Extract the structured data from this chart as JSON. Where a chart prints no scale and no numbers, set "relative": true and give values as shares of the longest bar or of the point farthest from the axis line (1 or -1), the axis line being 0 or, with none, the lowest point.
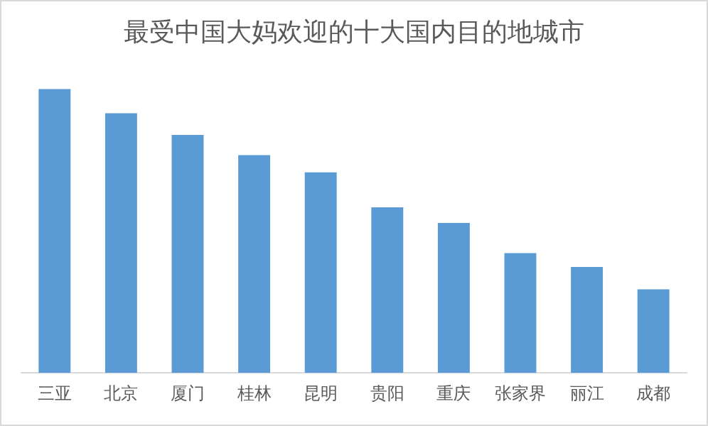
{
  "chart_data": {
    "type": "bar",
    "title": "最受中国大妈欢迎的十大国内目的地城市",
    "categories": [
      "三亚",
      "北京",
      "厦门",
      "桂林",
      "昆明",
      "贵阳",
      "重庆",
      "张家界",
      "丽江",
      "成都"
    ],
    "values": [
      1,
      0.914,
      0.838,
      0.767,
      0.706,
      0.583,
      0.528,
      0.422,
      0.373,
      0.294
    ],
    "color": "#5b9bd5",
    "relative": true,
    "grid": false,
    "legend": false
  }
}
